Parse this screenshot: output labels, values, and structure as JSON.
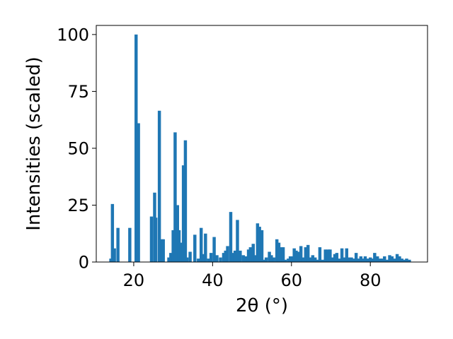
{
  "chart_data": {
    "type": "bar",
    "title": "",
    "xlabel": "2θ (°)",
    "ylabel": "Intensities (scaled)",
    "xlim": [
      10.5,
      94.5
    ],
    "ylim": [
      0,
      104
    ],
    "xticks": [
      20,
      40,
      60,
      80
    ],
    "yticks": [
      0,
      25,
      50,
      75,
      100
    ],
    "xtick_labels": [
      "20",
      "40",
      "60",
      "80"
    ],
    "ytick_labels": [
      "0",
      "25",
      "50",
      "75",
      "100"
    ],
    "grid": false,
    "legend": "none",
    "bar_width": 0.8,
    "bar_color": "#1f77b4",
    "series": [
      {
        "x": [
          14.2,
          14.6,
          15.1,
          16.0,
          19.0,
          20.6,
          21.2,
          24.5,
          25.3,
          25.6,
          26.5,
          27.2,
          27.5,
          28.9,
          29.4,
          30.0,
          30.5,
          31.1,
          31.5,
          32.0,
          32.6,
          33.1,
          33.5,
          34.3,
          35.5,
          36.4,
          37.1,
          37.6,
          38.2,
          39.0,
          39.6,
          40.4,
          41.1,
          42.0,
          42.8,
          43.3,
          43.8,
          44.6,
          45.3,
          45.7,
          46.3,
          47.0,
          47.8,
          48.4,
          49.1,
          49.6,
          50.3,
          50.9,
          51.4,
          51.9,
          52.5,
          53.0,
          53.6,
          54.4,
          54.9,
          55.5,
          56.3,
          56.8,
          57.4,
          57.9,
          58.4,
          59.2,
          59.7,
          60.2,
          60.7,
          61.2,
          61.8,
          62.4,
          63.1,
          63.6,
          64.2,
          64.8,
          65.4,
          66.0,
          66.6,
          67.2,
          67.9,
          68.6,
          69.3,
          69.8,
          70.4,
          71.0,
          71.5,
          72.1,
          72.8,
          73.5,
          74.0,
          74.6,
          75.2,
          75.8,
          76.4,
          77.0,
          77.6,
          78.2,
          78.7,
          79.4,
          80.0,
          80.6,
          81.1,
          81.8,
          82.4,
          83.0,
          83.6,
          84.2,
          84.9,
          85.5,
          86.2,
          86.8,
          87.4,
          88.0,
          88.6,
          89.2,
          89.9
        ],
        "values": [
          1.5,
          25.5,
          6.0,
          15.0,
          15.0,
          100.0,
          61.0,
          20.0,
          30.5,
          19.5,
          66.5,
          10.0,
          10.0,
          2.0,
          4.0,
          14.0,
          57.0,
          25.0,
          14.0,
          8.5,
          42.5,
          53.5,
          2.0,
          4.5,
          12.0,
          1.5,
          15.0,
          3.5,
          12.5,
          1.5,
          4.0,
          11.0,
          3.0,
          2.0,
          4.0,
          5.0,
          7.0,
          22.0,
          4.0,
          5.0,
          18.5,
          5.0,
          3.0,
          2.5,
          5.5,
          6.5,
          8.0,
          3.0,
          17.0,
          15.5,
          14.0,
          1.0,
          2.0,
          4.5,
          3.0,
          2.0,
          10.0,
          8.5,
          6.5,
          6.5,
          1.0,
          1.5,
          2.5,
          2.5,
          6.0,
          5.0,
          4.5,
          7.0,
          2.0,
          6.5,
          7.5,
          2.0,
          3.0,
          2.0,
          1.0,
          6.5,
          1.0,
          5.5,
          5.5,
          5.5,
          2.0,
          3.5,
          4.0,
          1.5,
          6.0,
          2.0,
          6.0,
          2.0,
          2.0,
          1.5,
          4.0,
          1.5,
          2.5,
          1.5,
          2.5,
          1.5,
          2.0,
          1.5,
          4.0,
          2.5,
          1.5,
          1.5,
          2.5,
          1.0,
          3.0,
          2.5,
          1.5,
          3.5,
          2.5,
          1.5,
          1.0,
          1.5,
          1.0
        ]
      }
    ]
  }
}
